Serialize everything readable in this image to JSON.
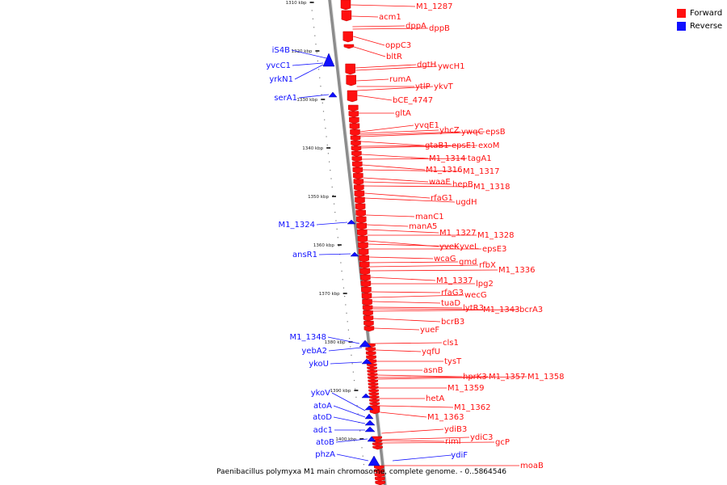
{
  "legend": {
    "forward_label": "Forward",
    "reverse_label": "Reverse",
    "forward_color": "#ff1010",
    "reverse_color": "#1010ff"
  },
  "caption": "Paenibacillus polymyxa M1 main chromosome, complete genome. - 0..5864546",
  "ticks": [
    "1310 kbp",
    "1320 kbp",
    "1330 kbp",
    "1340 kbp",
    "1350 kbp",
    "1360 kbp",
    "1370 kbp",
    "1380 kbp",
    "1390 kbp",
    "1400 kbp"
  ],
  "forward_genes": [
    "M1_1287",
    "acm1",
    "dppA",
    "dppB",
    "oppC3",
    "bltR",
    "dgtH",
    "ywcH1",
    "rumA",
    "ytlP",
    "ykvT",
    "bCE_4747",
    "gltA",
    "yvqE1",
    "yhcZ",
    "ywqC",
    "epsB",
    "gtaB1",
    "epsE1",
    "exoM",
    "M1_1314",
    "tagA1",
    "M1_1316",
    "M1_1317",
    "waaE",
    "hepB",
    "M1_1318",
    "rfaG1",
    "ugdH",
    "manC1",
    "manA5",
    "M1_1327",
    "M1_1328",
    "yveK",
    "yveL",
    "epsE3",
    "wcaG",
    "gmd",
    "rfbX",
    "M1_1336",
    "M1_1337",
    "lpg2",
    "rfaG3",
    "wecG",
    "tuaD",
    "lytR3",
    "M1_1343",
    "bcrA3",
    "bcrB3",
    "yueF",
    "cls1",
    "yqfU",
    "tysT",
    "asnB",
    "hprK3",
    "M1_1357",
    "M1_1358",
    "M1_1359",
    "hetA",
    "M1_1362",
    "M1_1363",
    "ydiB3",
    "rimI",
    "ydiC3",
    "gcP",
    "moaB"
  ],
  "reverse_genes": [
    "iS4B",
    "yvcC1",
    "yrkN1",
    "serA1",
    "M1_1324",
    "ansR1",
    "M1_1348",
    "yebA2",
    "ykoU",
    "ykoV",
    "atoA",
    "atoD",
    "adc1",
    "atoB",
    "phzA",
    "ydiF"
  ]
}
